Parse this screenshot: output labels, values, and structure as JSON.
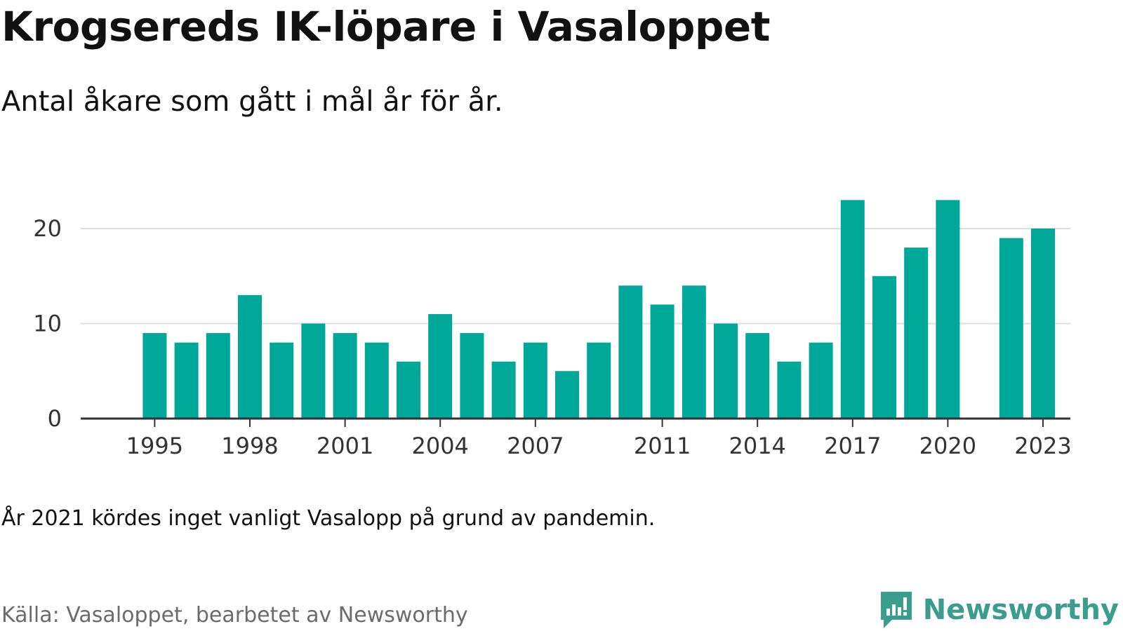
{
  "header": {
    "title": "Krogsereds IK-löpare i Vasaloppet",
    "subtitle": "Antal åkare som gått i mål år för år."
  },
  "footer": {
    "note": "År 2021 kördes inget vanligt Vasalopp på grund av pandemin.",
    "source": "Källa: Vasaloppet, bearbetet av Newsworthy",
    "brand": "Newsworthy",
    "brand_icon": "newsworthy-logo-icon"
  },
  "colors": {
    "bar": "#00a89a",
    "grid": "#dddddd",
    "axis": "#333333",
    "brand": "#3a9d8e"
  },
  "chart_data": {
    "type": "bar",
    "x": [
      1995,
      1996,
      1997,
      1998,
      1999,
      2000,
      2001,
      2002,
      2003,
      2004,
      2005,
      2006,
      2007,
      2008,
      2009,
      2010,
      2011,
      2012,
      2013,
      2014,
      2015,
      2016,
      2017,
      2018,
      2019,
      2020,
      2022,
      2023
    ],
    "values": [
      9,
      8,
      9,
      13,
      8,
      10,
      9,
      8,
      6,
      11,
      9,
      6,
      8,
      5,
      8,
      14,
      12,
      14,
      10,
      9,
      6,
      8,
      23,
      15,
      18,
      23,
      19,
      20
    ],
    "xticks": [
      "1995",
      "1998",
      "2001",
      "2004",
      "2007",
      "2011",
      "2014",
      "2017",
      "2020",
      "2023"
    ],
    "yticks": [
      "0",
      "10",
      "20"
    ],
    "ylim": [
      0,
      25
    ],
    "grid": true
  }
}
